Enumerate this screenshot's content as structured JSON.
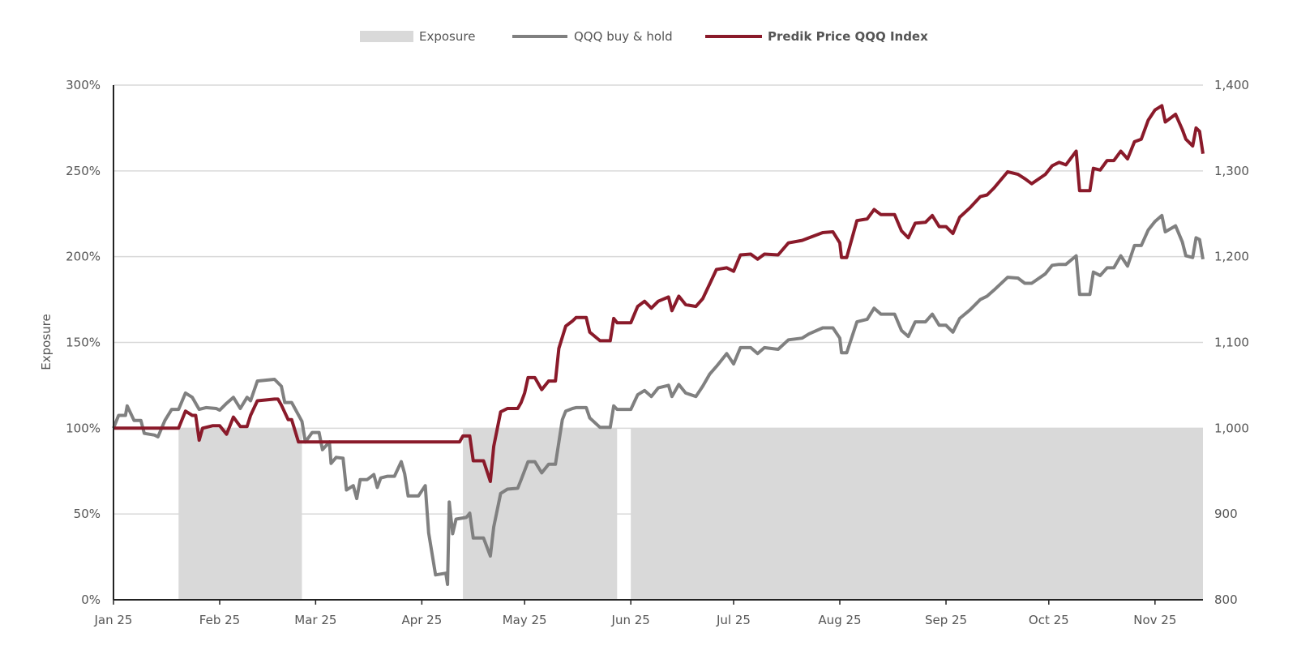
{
  "chart_data": {
    "type": "line",
    "title": "",
    "legend_position": "top-center",
    "legend": [
      "Exposure",
      "QQQ buy & hold",
      "Predik Price QQQ Index"
    ],
    "xlabel": "",
    "ylabel_left": "Exposure",
    "ylabel_right": "",
    "x_unit": "days since Jan 1 2025",
    "xlim": [
      0,
      318
    ],
    "ylim_left": [
      0,
      300
    ],
    "ylim_right": [
      800,
      1400
    ],
    "grid": true,
    "x_ticks": [
      {
        "day": 0,
        "label": "Jan 25"
      },
      {
        "day": 31,
        "label": "Feb 25"
      },
      {
        "day": 59,
        "label": "Mar 25"
      },
      {
        "day": 90,
        "label": "Apr 25"
      },
      {
        "day": 120,
        "label": "May 25"
      },
      {
        "day": 151,
        "label": "Jun 25"
      },
      {
        "day": 181,
        "label": "Jul 25"
      },
      {
        "day": 212,
        "label": "Aug 25"
      },
      {
        "day": 243,
        "label": "Sep 25"
      },
      {
        "day": 273,
        "label": "Oct 25"
      },
      {
        "day": 304,
        "label": "Nov 25"
      }
    ],
    "y_ticks_left": [
      {
        "value": 0,
        "label": "0%"
      },
      {
        "value": 50,
        "label": "50%"
      },
      {
        "value": 100,
        "label": "100%"
      },
      {
        "value": 150,
        "label": "150%"
      },
      {
        "value": 200,
        "label": "200%"
      },
      {
        "value": 250,
        "label": "250%"
      },
      {
        "value": 300,
        "label": "300%"
      }
    ],
    "y_ticks_right": [
      {
        "value": 800,
        "label": "800"
      },
      {
        "value": 900,
        "label": "900"
      },
      {
        "value": 1000,
        "label": "1,000"
      },
      {
        "value": 1100,
        "label": "1,100"
      },
      {
        "value": 1200,
        "label": "1,200"
      },
      {
        "value": 1300,
        "label": "1,300"
      },
      {
        "value": 1400,
        "label": "1,400"
      }
    ],
    "colors": {
      "exposure": "#d9d9d9",
      "qqq": "#808080",
      "predik": "#8a1a2a",
      "grid": "#d9d9d9",
      "axis": "#222222"
    },
    "exposure": {
      "name": "Exposure",
      "axis": "left",
      "periods": [
        {
          "start": 19,
          "end": 55,
          "value": 100
        },
        {
          "start": 102,
          "end": 147,
          "value": 100
        },
        {
          "start": 151,
          "end": 318,
          "value": 100
        }
      ]
    },
    "series": [
      {
        "name": "QQQ buy & hold",
        "axis": "right",
        "points": [
          [
            0,
            1000
          ],
          [
            1.5,
            1015
          ],
          [
            3.5,
            1015
          ],
          [
            4,
            1026
          ],
          [
            6,
            1009
          ],
          [
            8,
            1009
          ],
          [
            9,
            994
          ],
          [
            12,
            992
          ],
          [
            13,
            990
          ],
          [
            15,
            1009
          ],
          [
            17,
            1022
          ],
          [
            19,
            1022
          ],
          [
            21,
            1041
          ],
          [
            23,
            1036
          ],
          [
            25,
            1022
          ],
          [
            27,
            1024
          ],
          [
            30,
            1023
          ],
          [
            31,
            1021
          ],
          [
            33,
            1029
          ],
          [
            35,
            1036
          ],
          [
            37,
            1023
          ],
          [
            39,
            1036
          ],
          [
            40,
            1032
          ],
          [
            42,
            1055
          ],
          [
            47,
            1057
          ],
          [
            49,
            1049
          ],
          [
            50,
            1030
          ],
          [
            52,
            1030
          ],
          [
            55,
            1008
          ],
          [
            56,
            984
          ],
          [
            58,
            995
          ],
          [
            60,
            995
          ],
          [
            61,
            975
          ],
          [
            63,
            984
          ],
          [
            63.5,
            959
          ],
          [
            65,
            966
          ],
          [
            67,
            965
          ],
          [
            68,
            928
          ],
          [
            70,
            933
          ],
          [
            71,
            918
          ],
          [
            72,
            940
          ],
          [
            74,
            940
          ],
          [
            76,
            946
          ],
          [
            77,
            931
          ],
          [
            78,
            942
          ],
          [
            80,
            944
          ],
          [
            82,
            944
          ],
          [
            84,
            961
          ],
          [
            85,
            947
          ],
          [
            86,
            921
          ],
          [
            89,
            921
          ],
          [
            91,
            933
          ],
          [
            92,
            878
          ],
          [
            94,
            829
          ],
          [
            97,
            831
          ],
          [
            97.5,
            818
          ],
          [
            98,
            914
          ],
          [
            99,
            877
          ],
          [
            100,
            894
          ],
          [
            103,
            896
          ],
          [
            104,
            901
          ],
          [
            105,
            872
          ],
          [
            108,
            872
          ],
          [
            110,
            851
          ],
          [
            111,
            885
          ],
          [
            113,
            924
          ],
          [
            115,
            929
          ],
          [
            118,
            930
          ],
          [
            119,
            940
          ],
          [
            121,
            961
          ],
          [
            123,
            961
          ],
          [
            125,
            948
          ],
          [
            127,
            958
          ],
          [
            129,
            958
          ],
          [
            131,
            1010
          ],
          [
            132,
            1020
          ],
          [
            134,
            1023
          ],
          [
            135,
            1024
          ],
          [
            138,
            1024
          ],
          [
            139,
            1012
          ],
          [
            142,
            1001
          ],
          [
            145,
            1001
          ],
          [
            146,
            1026
          ],
          [
            147,
            1022
          ],
          [
            151,
            1022
          ],
          [
            153,
            1039
          ],
          [
            155,
            1044
          ],
          [
            157,
            1037
          ],
          [
            159,
            1047
          ],
          [
            162,
            1050
          ],
          [
            163,
            1037
          ],
          [
            165,
            1051
          ],
          [
            167,
            1041
          ],
          [
            170,
            1037
          ],
          [
            172,
            1049
          ],
          [
            174,
            1063
          ],
          [
            176,
            1072
          ],
          [
            179,
            1087
          ],
          [
            181,
            1075
          ],
          [
            183,
            1094
          ],
          [
            186,
            1094
          ],
          [
            188,
            1087
          ],
          [
            190,
            1094
          ],
          [
            194,
            1092
          ],
          [
            197,
            1103
          ],
          [
            201,
            1105
          ],
          [
            203,
            1110
          ],
          [
            207,
            1117
          ],
          [
            210,
            1117
          ],
          [
            212,
            1105
          ],
          [
            212.5,
            1088
          ],
          [
            214,
            1088
          ],
          [
            217,
            1124
          ],
          [
            220,
            1127
          ],
          [
            222,
            1140
          ],
          [
            224,
            1133
          ],
          [
            228,
            1133
          ],
          [
            230,
            1114
          ],
          [
            232,
            1107
          ],
          [
            234,
            1124
          ],
          [
            237,
            1124
          ],
          [
            239,
            1133
          ],
          [
            241,
            1120
          ],
          [
            243,
            1120
          ],
          [
            245,
            1112
          ],
          [
            247,
            1128
          ],
          [
            250,
            1138
          ],
          [
            253,
            1150
          ],
          [
            255,
            1154
          ],
          [
            257,
            1161
          ],
          [
            261,
            1176
          ],
          [
            264,
            1175
          ],
          [
            266,
            1169
          ],
          [
            268,
            1169
          ],
          [
            272,
            1180
          ],
          [
            274,
            1190
          ],
          [
            276,
            1191
          ],
          [
            278,
            1191
          ],
          [
            281,
            1201
          ],
          [
            282,
            1156
          ],
          [
            285,
            1156
          ],
          [
            286,
            1182
          ],
          [
            288,
            1178
          ],
          [
            290,
            1187
          ],
          [
            292,
            1187
          ],
          [
            294,
            1201
          ],
          [
            296,
            1189
          ],
          [
            298,
            1213
          ],
          [
            300,
            1213
          ],
          [
            302,
            1231
          ],
          [
            304,
            1241
          ],
          [
            306,
            1248
          ],
          [
            307,
            1229
          ],
          [
            310,
            1236
          ],
          [
            312,
            1217
          ],
          [
            313,
            1201
          ],
          [
            315,
            1199
          ],
          [
            316,
            1222
          ],
          [
            317,
            1220
          ],
          [
            318,
            1197
          ]
        ]
      },
      {
        "name": "Predik Price QQQ Index",
        "axis": "right",
        "points": [
          [
            0,
            1000
          ],
          [
            19,
            1000
          ],
          [
            21,
            1020
          ],
          [
            23,
            1015
          ],
          [
            24,
            1015
          ],
          [
            25,
            986
          ],
          [
            26,
            1000
          ],
          [
            29,
            1003
          ],
          [
            31,
            1003
          ],
          [
            33,
            993
          ],
          [
            35,
            1013
          ],
          [
            37,
            1002
          ],
          [
            39,
            1002
          ],
          [
            40,
            1015
          ],
          [
            42,
            1032
          ],
          [
            47,
            1034
          ],
          [
            48,
            1034
          ],
          [
            49,
            1027
          ],
          [
            51,
            1010
          ],
          [
            52,
            1010
          ],
          [
            54,
            984
          ],
          [
            101,
            984
          ],
          [
            102,
            991
          ],
          [
            104,
            991
          ],
          [
            105,
            962
          ],
          [
            108,
            962
          ],
          [
            110,
            938
          ],
          [
            111,
            979
          ],
          [
            113,
            1019
          ],
          [
            115,
            1023
          ],
          [
            118,
            1023
          ],
          [
            119,
            1030
          ],
          [
            120,
            1041
          ],
          [
            121,
            1059
          ],
          [
            123,
            1059
          ],
          [
            125,
            1045
          ],
          [
            127,
            1055
          ],
          [
            129,
            1055
          ],
          [
            130,
            1093
          ],
          [
            132,
            1119
          ],
          [
            134,
            1125
          ],
          [
            135,
            1129
          ],
          [
            138,
            1129
          ],
          [
            139,
            1112
          ],
          [
            142,
            1102
          ],
          [
            145,
            1102
          ],
          [
            146,
            1128
          ],
          [
            147,
            1123
          ],
          [
            151,
            1123
          ],
          [
            153,
            1142
          ],
          [
            155,
            1148
          ],
          [
            157,
            1140
          ],
          [
            159,
            1148
          ],
          [
            162,
            1153
          ],
          [
            163,
            1137
          ],
          [
            165,
            1154
          ],
          [
            167,
            1144
          ],
          [
            170,
            1142
          ],
          [
            172,
            1151
          ],
          [
            174,
            1168
          ],
          [
            176,
            1185
          ],
          [
            179,
            1187
          ],
          [
            181,
            1183
          ],
          [
            183,
            1202
          ],
          [
            186,
            1203
          ],
          [
            188,
            1197
          ],
          [
            190,
            1203
          ],
          [
            194,
            1202
          ],
          [
            197,
            1216
          ],
          [
            201,
            1219
          ],
          [
            203,
            1222
          ],
          [
            207,
            1228
          ],
          [
            210,
            1229
          ],
          [
            212,
            1216
          ],
          [
            212.5,
            1199
          ],
          [
            214,
            1199
          ],
          [
            217,
            1242
          ],
          [
            220,
            1244
          ],
          [
            222,
            1255
          ],
          [
            224,
            1249
          ],
          [
            228,
            1249
          ],
          [
            230,
            1230
          ],
          [
            232,
            1222
          ],
          [
            234,
            1239
          ],
          [
            237,
            1240
          ],
          [
            239,
            1248
          ],
          [
            241,
            1235
          ],
          [
            243,
            1235
          ],
          [
            245,
            1227
          ],
          [
            247,
            1246
          ],
          [
            250,
            1257
          ],
          [
            253,
            1270
          ],
          [
            255,
            1272
          ],
          [
            257,
            1280
          ],
          [
            261,
            1299
          ],
          [
            264,
            1296
          ],
          [
            266,
            1291
          ],
          [
            268,
            1285
          ],
          [
            272,
            1296
          ],
          [
            274,
            1306
          ],
          [
            276,
            1310
          ],
          [
            278,
            1307
          ],
          [
            281,
            1323
          ],
          [
            282,
            1277
          ],
          [
            285,
            1277
          ],
          [
            286,
            1303
          ],
          [
            288,
            1301
          ],
          [
            290,
            1312
          ],
          [
            292,
            1312
          ],
          [
            294,
            1323
          ],
          [
            296,
            1314
          ],
          [
            298,
            1334
          ],
          [
            300,
            1337
          ],
          [
            302,
            1359
          ],
          [
            304,
            1371
          ],
          [
            306,
            1376
          ],
          [
            307,
            1357
          ],
          [
            310,
            1366
          ],
          [
            312,
            1348
          ],
          [
            313,
            1337
          ],
          [
            315,
            1329
          ],
          [
            316,
            1350
          ],
          [
            317,
            1346
          ],
          [
            318,
            1320
          ]
        ]
      }
    ]
  }
}
